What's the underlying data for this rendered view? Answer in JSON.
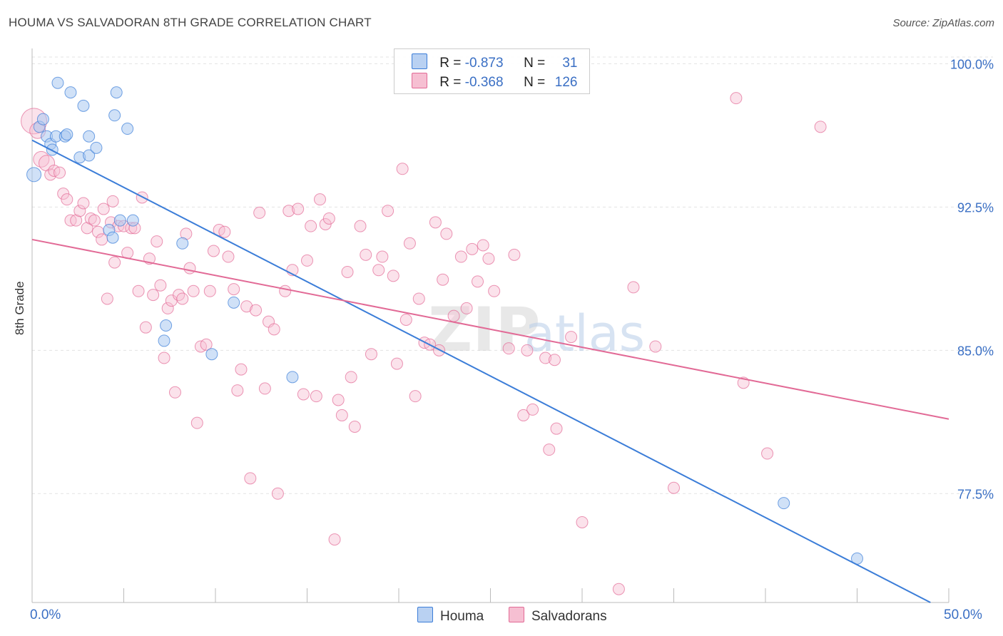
{
  "title": "HOUMA VS SALVADORAN 8TH GRADE CORRELATION CHART",
  "source": "Source: ZipAtlas.com",
  "colors": {
    "houma": "#3b7dd8",
    "salvadorans": "#e26a96",
    "houma_fill": "#b9d1f2",
    "salvadorans_fill": "#f6bfd2",
    "tick_label": "#3a6fc4"
  },
  "legend": {
    "houma": {
      "r_label": "R = ",
      "r": "-0.873",
      "n_label": "N = ",
      "n": "31"
    },
    "salvadorans": {
      "r_label": "R = ",
      "r": "-0.368",
      "n_label": "N = ",
      "n": "126"
    }
  },
  "bottom_legend": {
    "houma": "Houma",
    "salvadorans": "Salvadorans"
  },
  "chart_data": {
    "type": "scatter",
    "title": "HOUMA VS SALVADORAN 8TH GRADE CORRELATION CHART",
    "xlabel": "",
    "ylabel": "8th Grade",
    "xlim": [
      0,
      50
    ],
    "ylim": [
      71.8,
      100.8
    ],
    "x_tick_labels": [
      "0.0%",
      "50.0%"
    ],
    "y_ticks": [
      100.0,
      92.5,
      85.0,
      77.5
    ],
    "y_tick_labels": [
      "100.0%",
      "92.5%",
      "85.0%",
      "77.5%"
    ],
    "grid": true,
    "watermark": "ZIPatlas",
    "series": [
      {
        "name": "Houma",
        "trend": {
          "x": [
            0.0,
            49.0
          ],
          "y": [
            96.0,
            71.8
          ]
        },
        "points": [
          [
            0.1,
            94.2
          ],
          [
            0.4,
            96.7
          ],
          [
            0.6,
            97.1
          ],
          [
            0.8,
            96.2
          ],
          [
            1.0,
            95.8
          ],
          [
            1.1,
            95.5
          ],
          [
            1.3,
            96.2
          ],
          [
            1.4,
            99.0
          ],
          [
            1.8,
            96.2
          ],
          [
            1.9,
            96.3
          ],
          [
            2.1,
            98.5
          ],
          [
            2.6,
            95.1
          ],
          [
            2.8,
            97.8
          ],
          [
            3.1,
            96.2
          ],
          [
            3.1,
            95.2
          ],
          [
            3.5,
            95.6
          ],
          [
            4.2,
            91.3
          ],
          [
            4.4,
            90.9
          ],
          [
            4.5,
            97.3
          ],
          [
            4.6,
            98.5
          ],
          [
            4.8,
            91.8
          ],
          [
            5.2,
            96.6
          ],
          [
            5.5,
            91.8
          ],
          [
            7.2,
            85.5
          ],
          [
            7.3,
            86.3
          ],
          [
            8.2,
            90.6
          ],
          [
            9.8,
            84.8
          ],
          [
            11.0,
            87.5
          ],
          [
            14.2,
            83.6
          ],
          [
            41.0,
            77.0
          ],
          [
            45.0,
            74.1
          ]
        ]
      },
      {
        "name": "Salvadorans",
        "trend": {
          "x": [
            0.0,
            50.0
          ],
          "y": [
            90.8,
            81.4
          ]
        },
        "points": [
          [
            0.1,
            97.0
          ],
          [
            0.3,
            96.5
          ],
          [
            0.5,
            95.0
          ],
          [
            0.8,
            94.8
          ],
          [
            1.0,
            94.2
          ],
          [
            1.2,
            94.4
          ],
          [
            1.5,
            94.3
          ],
          [
            1.7,
            93.2
          ],
          [
            1.9,
            92.9
          ],
          [
            2.1,
            91.8
          ],
          [
            2.4,
            91.8
          ],
          [
            2.6,
            92.3
          ],
          [
            2.8,
            92.7
          ],
          [
            3.0,
            91.4
          ],
          [
            3.2,
            91.9
          ],
          [
            3.4,
            91.8
          ],
          [
            3.6,
            91.2
          ],
          [
            3.8,
            90.8
          ],
          [
            3.9,
            92.4
          ],
          [
            4.1,
            87.7
          ],
          [
            4.3,
            91.7
          ],
          [
            4.4,
            92.8
          ],
          [
            4.5,
            89.6
          ],
          [
            4.7,
            91.5
          ],
          [
            5.0,
            91.5
          ],
          [
            5.2,
            90.1
          ],
          [
            5.4,
            91.4
          ],
          [
            5.6,
            91.4
          ],
          [
            5.8,
            88.1
          ],
          [
            6.0,
            93.0
          ],
          [
            6.2,
            86.2
          ],
          [
            6.4,
            89.8
          ],
          [
            6.6,
            87.9
          ],
          [
            6.8,
            90.7
          ],
          [
            7.0,
            88.4
          ],
          [
            7.2,
            84.6
          ],
          [
            7.4,
            87.2
          ],
          [
            7.6,
            87.6
          ],
          [
            7.8,
            82.8
          ],
          [
            8.0,
            87.9
          ],
          [
            8.2,
            87.7
          ],
          [
            8.4,
            91.1
          ],
          [
            8.6,
            89.3
          ],
          [
            8.8,
            88.1
          ],
          [
            9.0,
            81.2
          ],
          [
            9.2,
            85.2
          ],
          [
            9.5,
            85.3
          ],
          [
            9.7,
            88.1
          ],
          [
            9.9,
            90.2
          ],
          [
            10.2,
            91.3
          ],
          [
            10.5,
            91.2
          ],
          [
            10.7,
            89.9
          ],
          [
            11.0,
            88.2
          ],
          [
            11.2,
            82.9
          ],
          [
            11.4,
            84.0
          ],
          [
            11.7,
            87.3
          ],
          [
            11.9,
            78.3
          ],
          [
            12.2,
            87.1
          ],
          [
            12.4,
            92.2
          ],
          [
            12.7,
            83.0
          ],
          [
            12.9,
            86.5
          ],
          [
            13.2,
            86.1
          ],
          [
            13.4,
            77.5
          ],
          [
            13.8,
            88.1
          ],
          [
            14.0,
            92.3
          ],
          [
            14.2,
            89.2
          ],
          [
            14.5,
            92.4
          ],
          [
            14.8,
            82.7
          ],
          [
            15.0,
            89.7
          ],
          [
            15.2,
            91.5
          ],
          [
            15.5,
            82.6
          ],
          [
            15.7,
            92.9
          ],
          [
            16.0,
            91.6
          ],
          [
            16.2,
            91.9
          ],
          [
            16.5,
            75.1
          ],
          [
            16.7,
            82.4
          ],
          [
            16.9,
            81.6
          ],
          [
            17.2,
            89.1
          ],
          [
            17.4,
            83.6
          ],
          [
            17.6,
            81.0
          ],
          [
            17.9,
            91.5
          ],
          [
            18.2,
            90.0
          ],
          [
            18.5,
            84.8
          ],
          [
            18.9,
            89.2
          ],
          [
            19.1,
            89.9
          ],
          [
            19.4,
            92.3
          ],
          [
            19.7,
            88.9
          ],
          [
            19.9,
            84.3
          ],
          [
            20.2,
            94.5
          ],
          [
            20.4,
            86.6
          ],
          [
            20.6,
            90.6
          ],
          [
            20.9,
            82.6
          ],
          [
            21.1,
            87.7
          ],
          [
            21.4,
            85.4
          ],
          [
            21.7,
            85.3
          ],
          [
            22.0,
            91.7
          ],
          [
            22.2,
            85.0
          ],
          [
            22.4,
            88.7
          ],
          [
            22.6,
            91.1
          ],
          [
            23.0,
            86.8
          ],
          [
            23.4,
            89.9
          ],
          [
            23.7,
            87.2
          ],
          [
            24.0,
            90.3
          ],
          [
            24.3,
            88.6
          ],
          [
            24.6,
            90.5
          ],
          [
            24.9,
            89.8
          ],
          [
            25.2,
            88.1
          ],
          [
            26.0,
            85.1
          ],
          [
            26.8,
            81.6
          ],
          [
            27.0,
            85.0
          ],
          [
            27.3,
            81.9
          ],
          [
            28.0,
            84.6
          ],
          [
            28.2,
            79.8
          ],
          [
            28.6,
            80.9
          ],
          [
            30.0,
            76.0
          ],
          [
            32.0,
            72.5
          ],
          [
            32.8,
            88.3
          ],
          [
            34.0,
            85.2
          ],
          [
            35.0,
            77.8
          ],
          [
            38.8,
            83.3
          ],
          [
            38.4,
            98.2
          ],
          [
            40.1,
            79.6
          ],
          [
            43.0,
            96.7
          ],
          [
            26.3,
            90.0
          ],
          [
            29.4,
            85.7
          ],
          [
            28.5,
            84.5
          ]
        ]
      }
    ]
  }
}
